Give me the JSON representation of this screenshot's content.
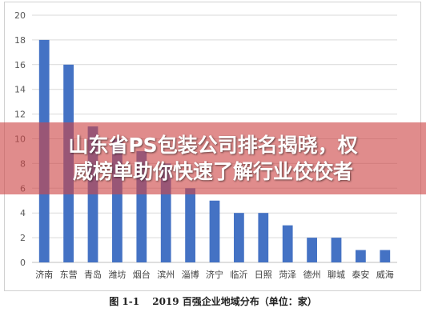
{
  "chart_data": {
    "type": "bar",
    "categories": [
      "济南",
      "东营",
      "青岛",
      "潍坊",
      "烟台",
      "滨州",
      "淄博",
      "济宁",
      "临沂",
      "日照",
      "菏泽",
      "德州",
      "聊城",
      "泰安",
      "威海"
    ],
    "values": [
      18,
      16,
      11,
      10,
      9,
      8,
      6,
      5,
      4,
      4,
      3,
      2,
      2,
      1,
      1
    ],
    "yticks": [
      0,
      2,
      4,
      6,
      8,
      10,
      12,
      14,
      16,
      18,
      20
    ],
    "ylim": [
      0,
      20
    ],
    "grid": true,
    "bar_color": "#4472c4"
  },
  "banner": {
    "line1": "山东省PS包装公司排名揭晓，权",
    "line2": "威榜单助你快速了解行业佼佼者"
  },
  "caption": {
    "figure_no": "图 1-1",
    "text": "2019 百强企业地域分布（单位：家）"
  }
}
